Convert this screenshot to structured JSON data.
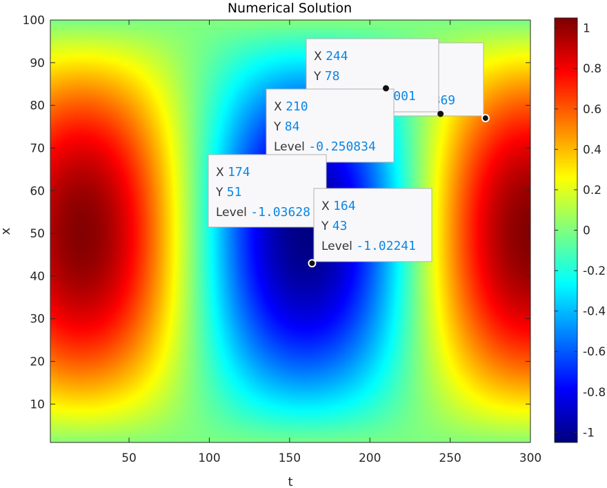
{
  "chart_data": {
    "type": "heatmap",
    "title": "Numerical Solution",
    "xlabel": "t",
    "ylabel": "x",
    "xlim": [
      1,
      300
    ],
    "ylim": [
      1,
      100
    ],
    "xticks": [
      50,
      100,
      150,
      200,
      250,
      300
    ],
    "yticks": [
      10,
      20,
      30,
      40,
      50,
      60,
      70,
      80,
      90,
      100
    ],
    "colormap": "jet",
    "clim": [
      -1.05,
      1.05
    ],
    "colorbar_ticks": [
      1,
      0.8,
      0.6,
      0.4,
      0.2,
      0,
      -0.2,
      -0.4,
      -0.6,
      -0.8,
      -1
    ],
    "colorbar_tick_labels": [
      "1",
      "0.8",
      "0.6",
      "0.4",
      "0.2",
      "0",
      "-0.2",
      "-0.4",
      "-0.6",
      "-0.8",
      "-1"
    ],
    "datatips": [
      {
        "x": 272,
        "y": 77,
        "level": "...2869",
        "x_label": "X",
        "y_label": "Y",
        "level_label": "Level"
      },
      {
        "x": 244,
        "y": 78,
        "level": "0.0515001",
        "x_label": "X",
        "y_label": "Y",
        "level_label": "Level"
      },
      {
        "x": 210,
        "y": 84,
        "level": "-0.250834",
        "x_label": "X",
        "y_label": "Y",
        "level_label": "Level"
      },
      {
        "x": 174,
        "y": 51,
        "level": "-1.03628",
        "x_label": "X",
        "y_label": "Y",
        "level_label": "Level"
      },
      {
        "x": 164,
        "y": 43,
        "level": "-1.02241",
        "x_label": "X",
        "y_label": "Y",
        "level_label": "Level"
      }
    ]
  }
}
